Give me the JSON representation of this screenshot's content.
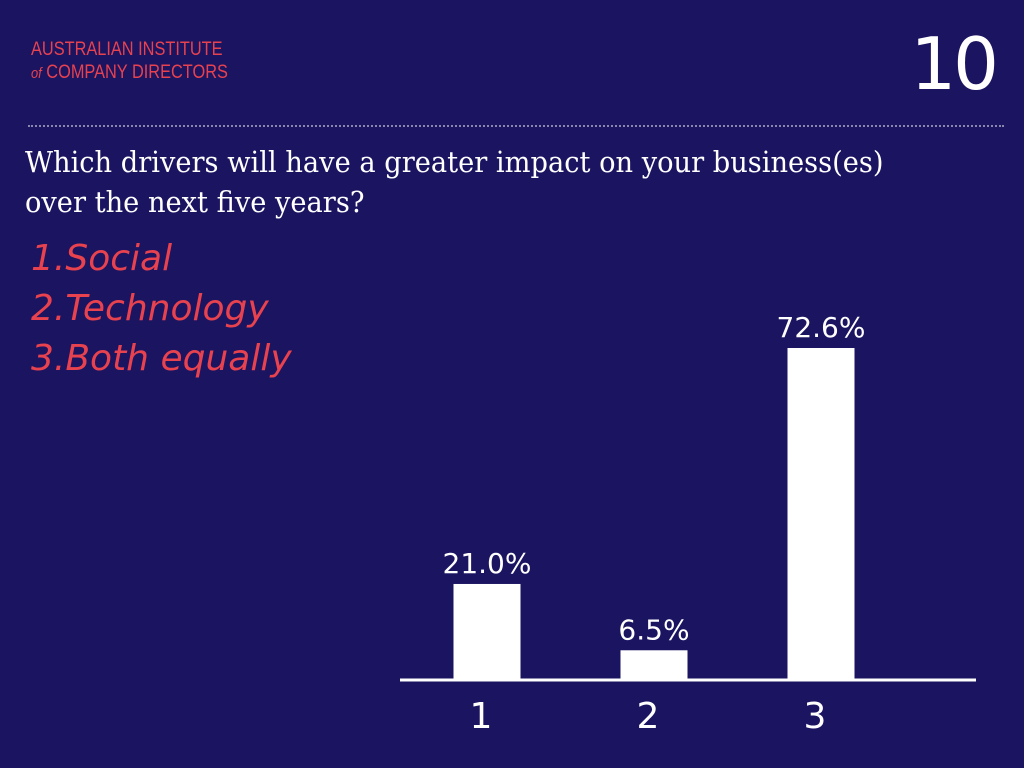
{
  "header": {
    "logo_line1": "AUSTRALIAN INSTITUTE",
    "logo_of": "of",
    "logo_line2": "COMPANY DIRECTORS",
    "slide_number": "10"
  },
  "question": "Which drivers will have a greater impact on your business(es) over the next five years?",
  "options": [
    "1.Social",
    "2.Technology",
    "3.Both equally"
  ],
  "colors": {
    "background": "#1b1461",
    "accent": "#e8424f",
    "bar": "#ffffff",
    "text": "#ffffff"
  },
  "chart_data": {
    "type": "bar",
    "categories": [
      "1",
      "2",
      "3"
    ],
    "values": [
      21.0,
      6.5,
      72.6
    ],
    "data_labels": [
      "21.0%",
      "6.5%",
      "72.6%"
    ],
    "title": "",
    "xlabel": "",
    "ylabel": "",
    "ylim": [
      0,
      72.6
    ],
    "grid": false,
    "legend": "none"
  }
}
